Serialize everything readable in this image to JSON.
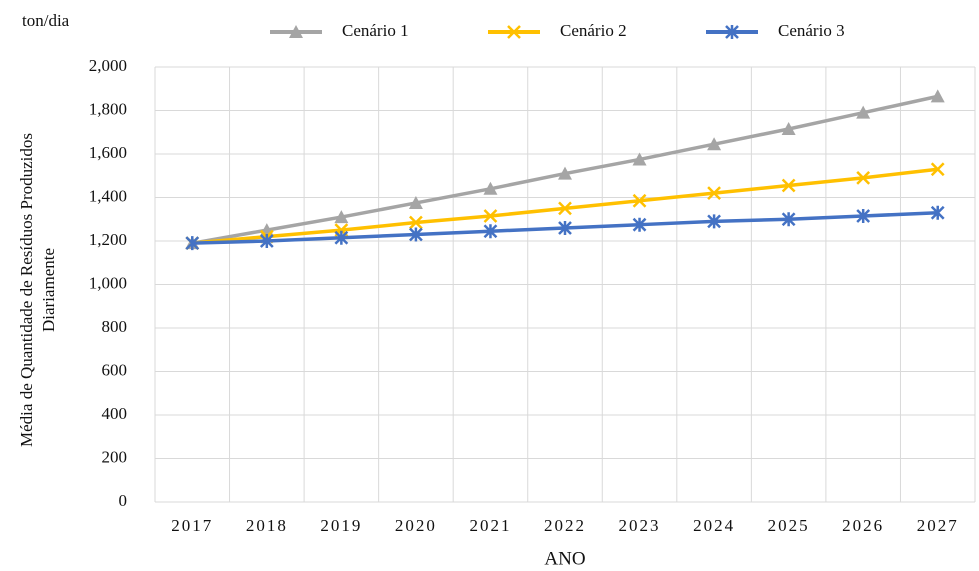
{
  "chart_data": {
    "type": "line",
    "unit_label": "ton/dia",
    "y_label_lines": [
      "Média de Quantidade de Resíduos Produzidos",
      "Diariamente"
    ],
    "x_label": "ANO",
    "categories": [
      "2017",
      "2018",
      "2019",
      "2020",
      "2021",
      "2022",
      "2023",
      "2024",
      "2025",
      "2026",
      "2027"
    ],
    "series": [
      {
        "name": "Cenário 1",
        "color": "#a5a5a5",
        "marker": "triangle",
        "values": [
          1190,
          1250,
          1310,
          1375,
          1440,
          1510,
          1575,
          1645,
          1715,
          1790,
          1865
        ]
      },
      {
        "name": "Cenário 2",
        "color": "#ffc000",
        "marker": "x",
        "values": [
          1190,
          1220,
          1250,
          1285,
          1315,
          1350,
          1385,
          1420,
          1455,
          1490,
          1530
        ]
      },
      {
        "name": "Cenário 3",
        "color": "#4472c4",
        "marker": "asterisk",
        "values": [
          1190,
          1200,
          1215,
          1230,
          1245,
          1260,
          1275,
          1290,
          1300,
          1315,
          1330
        ]
      }
    ],
    "ylim": [
      0,
      2000
    ],
    "yticks": [
      0,
      200,
      400,
      600,
      800,
      {
        "value": 1000,
        "label": "1,000"
      },
      {
        "value": 1200,
        "label": "1,200"
      },
      {
        "value": 1400,
        "label": "1,400"
      },
      {
        "value": 1600,
        "label": "1,600"
      },
      {
        "value": 1800,
        "label": "1,800"
      },
      {
        "value": 2000,
        "label": "2,000"
      }
    ],
    "grid": true,
    "legend": "top"
  }
}
